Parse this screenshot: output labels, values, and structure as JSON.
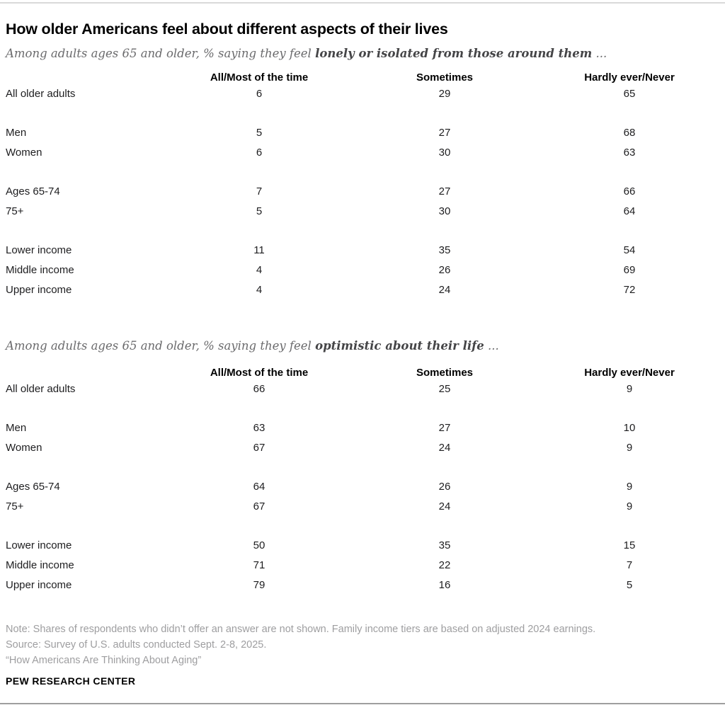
{
  "title": "How older Americans feel about different aspects of their lives",
  "chart_data": [
    {
      "type": "table",
      "subtitle": {
        "prefix": "Among adults ages 65 and older, % saying they feel ",
        "bold": "lonely or isolated from those around them",
        "suffix": " ..."
      },
      "columns": [
        "All/Most of the time",
        "Sometimes",
        "Hardly ever/Never"
      ],
      "groups": [
        {
          "rows": [
            {
              "label": "All older adults",
              "values": [
                6,
                29,
                65
              ]
            }
          ]
        },
        {
          "rows": [
            {
              "label": "Men",
              "values": [
                5,
                27,
                68
              ]
            },
            {
              "label": "Women",
              "values": [
                6,
                30,
                63
              ]
            }
          ]
        },
        {
          "rows": [
            {
              "label": "Ages 65-74",
              "values": [
                7,
                27,
                66
              ]
            },
            {
              "label": "75+",
              "values": [
                5,
                30,
                64
              ]
            }
          ]
        },
        {
          "rows": [
            {
              "label": "Lower income",
              "values": [
                11,
                35,
                54
              ]
            },
            {
              "label": "Middle income",
              "values": [
                4,
                26,
                69
              ]
            },
            {
              "label": "Upper income",
              "values": [
                4,
                24,
                72
              ]
            }
          ]
        }
      ]
    },
    {
      "type": "table",
      "subtitle": {
        "prefix": "Among adults ages 65 and older, % saying they feel ",
        "bold": "optimistic about their life",
        "suffix": " ..."
      },
      "columns": [
        "All/Most of the time",
        "Sometimes",
        "Hardly ever/Never"
      ],
      "groups": [
        {
          "rows": [
            {
              "label": "All older adults",
              "values": [
                66,
                25,
                9
              ]
            }
          ]
        },
        {
          "rows": [
            {
              "label": "Men",
              "values": [
                63,
                27,
                10
              ]
            },
            {
              "label": "Women",
              "values": [
                67,
                24,
                9
              ]
            }
          ]
        },
        {
          "rows": [
            {
              "label": "Ages 65-74",
              "values": [
                64,
                26,
                9
              ]
            },
            {
              "label": "75+",
              "values": [
                67,
                24,
                9
              ]
            }
          ]
        },
        {
          "rows": [
            {
              "label": "Lower income",
              "values": [
                50,
                35,
                15
              ]
            },
            {
              "label": "Middle income",
              "values": [
                71,
                22,
                7
              ]
            },
            {
              "label": "Upper income",
              "values": [
                79,
                16,
                5
              ]
            }
          ]
        }
      ]
    }
  ],
  "footer": {
    "note": "Note: Shares of respondents who didn’t offer an answer are not shown. Family income tiers are based on adjusted 2024 earnings.",
    "source": "Source: Survey of U.S. adults conducted Sept. 2-8, 2025.",
    "report": "“How Americans Are Thinking About Aging”",
    "brand": "PEW RESEARCH CENTER"
  },
  "colors": {
    "subtitle_gray": "#6b6b6d",
    "subtitle_emphasis": "#454547",
    "text_black": "#1d1d1f",
    "footer_gray": "#9e9ea0",
    "rule_light": "#d9d9d9",
    "rule_dark": "#9f9f9f"
  }
}
